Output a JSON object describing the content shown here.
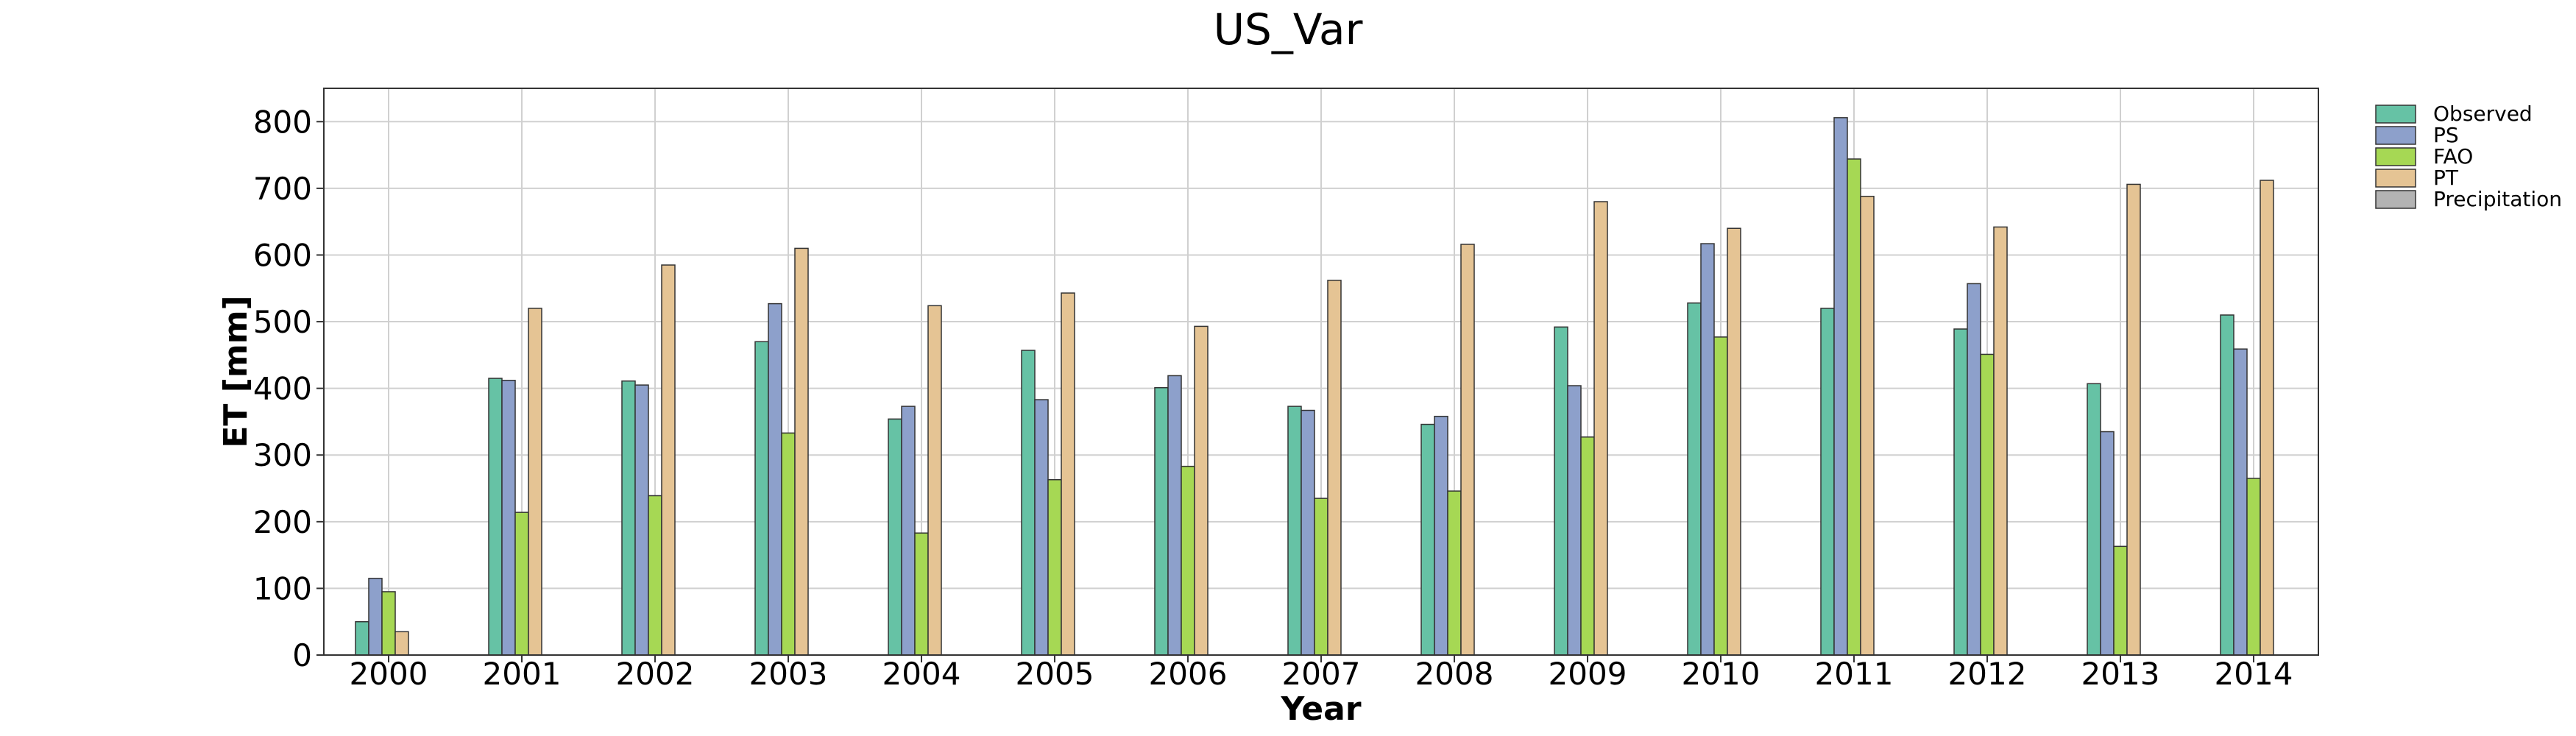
{
  "chart_data": {
    "type": "bar",
    "title": "US_Var",
    "xlabel": "Year",
    "ylabel": "ET [mm]",
    "categories": [
      "2000",
      "2001",
      "2002",
      "2003",
      "2004",
      "2005",
      "2006",
      "2007",
      "2008",
      "2009",
      "2010",
      "2011",
      "2012",
      "2013",
      "2014"
    ],
    "ylim": [
      0,
      850
    ],
    "yticks": [
      0,
      100,
      200,
      300,
      400,
      500,
      600,
      700,
      800
    ],
    "grid": true,
    "legend_position": "outside-right-top",
    "series": [
      {
        "name": "Observed",
        "color": "#66c2a5",
        "values": [
          50,
          415,
          411,
          470,
          354,
          457,
          401,
          373,
          346,
          492,
          528,
          520,
          489,
          407,
          510
        ]
      },
      {
        "name": "PS",
        "color": "#8da0cb",
        "values": [
          115,
          412,
          405,
          527,
          373,
          383,
          419,
          367,
          358,
          404,
          617,
          806,
          557,
          335,
          459
        ]
      },
      {
        "name": "FAO",
        "color": "#a6d854",
        "values": [
          95,
          214,
          239,
          333,
          183,
          263,
          283,
          235,
          246,
          327,
          477,
          744,
          451,
          163,
          265
        ]
      },
      {
        "name": "PT",
        "color": "#e5c494",
        "values": [
          35,
          520,
          585,
          610,
          524,
          543,
          493,
          562,
          616,
          680,
          640,
          688,
          642,
          706,
          712
        ]
      },
      {
        "name": "Precipitation",
        "color": "#b3b3b3",
        "values": [
          0,
          0,
          0,
          0,
          0,
          0,
          0,
          0,
          0,
          0,
          0,
          0,
          0,
          0,
          0
        ]
      }
    ]
  }
}
